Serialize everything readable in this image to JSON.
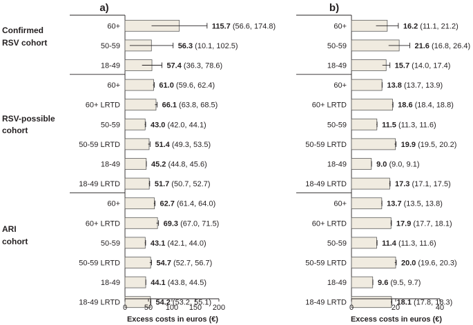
{
  "chart_data": [
    {
      "type": "bar",
      "orientation": "horizontal",
      "panel_label": "a)",
      "xlabel": "Excess costs in euros (€)",
      "xlim": [
        0,
        200
      ],
      "xticks": [
        "0",
        "50",
        "100",
        "150",
        "200"
      ],
      "groups": [
        {
          "name": "Confirmed\nRSV cohort",
          "rows": [
            {
              "category": "60+",
              "value": 115.7,
              "ci_low": 56.6,
              "ci_high": 174.8,
              "value_text": "115.7",
              "ci_text": "(56.6, 174.8)"
            },
            {
              "category": "50-59",
              "value": 56.3,
              "ci_low": 10.1,
              "ci_high": 102.5,
              "value_text": "56.3",
              "ci_text": "(10.1, 102.5)"
            },
            {
              "category": "18-49",
              "value": 57.4,
              "ci_low": 36.3,
              "ci_high": 78.6,
              "value_text": "57.4",
              "ci_text": "(36.3, 78.6)"
            }
          ]
        },
        {
          "name": "RSV-possible\ncohort",
          "rows": [
            {
              "category": "60+",
              "value": 61.0,
              "ci_low": 59.6,
              "ci_high": 62.4,
              "value_text": "61.0",
              "ci_text": "(59.6, 62.4)"
            },
            {
              "category": "60+ LRTD",
              "value": 66.1,
              "ci_low": 63.8,
              "ci_high": 68.5,
              "value_text": "66.1",
              "ci_text": "(63.8, 68.5)"
            },
            {
              "category": "50-59",
              "value": 43.0,
              "ci_low": 42.0,
              "ci_high": 44.1,
              "value_text": "43.0",
              "ci_text": "(42.0, 44.1)"
            },
            {
              "category": "50-59 LRTD",
              "value": 51.4,
              "ci_low": 49.3,
              "ci_high": 53.5,
              "value_text": "51.4",
              "ci_text": "(49.3, 53.5)"
            },
            {
              "category": "18-49",
              "value": 45.2,
              "ci_low": 44.8,
              "ci_high": 45.6,
              "value_text": "45.2",
              "ci_text": "(44.8, 45.6)"
            },
            {
              "category": "18-49 LRTD",
              "value": 51.7,
              "ci_low": 50.7,
              "ci_high": 52.7,
              "value_text": "51.7",
              "ci_text": "(50.7, 52.7)"
            }
          ]
        },
        {
          "name": "ARI\ncohort",
          "rows": [
            {
              "category": "60+",
              "value": 62.7,
              "ci_low": 61.4,
              "ci_high": 64.0,
              "value_text": "62.7",
              "ci_text": "(61.4, 64.0)"
            },
            {
              "category": "60+ LRTD",
              "value": 69.3,
              "ci_low": 67.0,
              "ci_high": 71.5,
              "value_text": "69.3",
              "ci_text": "(67.0, 71.5)"
            },
            {
              "category": "50-59",
              "value": 43.1,
              "ci_low": 42.1,
              "ci_high": 44.0,
              "value_text": "43.1",
              "ci_text": "(42.1, 44.0)"
            },
            {
              "category": "50-59 LRTD",
              "value": 54.7,
              "ci_low": 52.7,
              "ci_high": 56.7,
              "value_text": "54.7",
              "ci_text": "(52.7, 56.7)"
            },
            {
              "category": "18-49",
              "value": 44.1,
              "ci_low": 43.8,
              "ci_high": 44.5,
              "value_text": "44.1",
              "ci_text": "(43.8, 44.5)"
            },
            {
              "category": "18-49 LRTD",
              "value": 54.2,
              "ci_low": 53.2,
              "ci_high": 55.1,
              "value_text": "54.2",
              "ci_text": "(53.2, 55.1)"
            }
          ]
        }
      ]
    },
    {
      "type": "bar",
      "orientation": "horizontal",
      "panel_label": "b)",
      "xlabel": "Excess costs in euros (€)",
      "xlim": [
        0,
        40
      ],
      "xticks": [
        "0",
        "20",
        "40"
      ],
      "groups": [
        {
          "name": "Confirmed\nRSV cohort",
          "rows": [
            {
              "category": "60+",
              "value": 16.2,
              "ci_low": 11.1,
              "ci_high": 21.2,
              "value_text": "16.2",
              "ci_text": "(11.1, 21.2)"
            },
            {
              "category": "50-59",
              "value": 21.6,
              "ci_low": 16.8,
              "ci_high": 26.4,
              "value_text": "21.6",
              "ci_text": "(16.8, 26.4)"
            },
            {
              "category": "18-49",
              "value": 15.7,
              "ci_low": 14.0,
              "ci_high": 17.4,
              "value_text": "15.7",
              "ci_text": "(14.0, 17.4)"
            }
          ]
        },
        {
          "name": "RSV-possible\ncohort",
          "rows": [
            {
              "category": "60+",
              "value": 13.8,
              "ci_low": 13.7,
              "ci_high": 13.9,
              "value_text": "13.8",
              "ci_text": "(13.7, 13.9)"
            },
            {
              "category": "60+ LRTD",
              "value": 18.6,
              "ci_low": 18.4,
              "ci_high": 18.8,
              "value_text": "18.6",
              "ci_text": "(18.4, 18.8)"
            },
            {
              "category": "50-59",
              "value": 11.5,
              "ci_low": 11.3,
              "ci_high": 11.6,
              "value_text": "11.5",
              "ci_text": "(11.3, 11.6)"
            },
            {
              "category": "50-59 LRTD",
              "value": 19.9,
              "ci_low": 19.5,
              "ci_high": 20.2,
              "value_text": "19.9",
              "ci_text": "(19.5, 20.2)"
            },
            {
              "category": "18-49",
              "value": 9.0,
              "ci_low": 9.0,
              "ci_high": 9.1,
              "value_text": "9.0",
              "ci_text": "(9.0, 9.1)"
            },
            {
              "category": "18-49 LRTD",
              "value": 17.3,
              "ci_low": 17.1,
              "ci_high": 17.5,
              "value_text": "17.3",
              "ci_text": "(17.1, 17.5)"
            }
          ]
        },
        {
          "name": "ARI\ncohort",
          "rows": [
            {
              "category": "60+",
              "value": 13.7,
              "ci_low": 13.5,
              "ci_high": 13.8,
              "value_text": "13.7",
              "ci_text": "(13.5, 13.8)"
            },
            {
              "category": "60+ LRTD",
              "value": 17.9,
              "ci_low": 17.7,
              "ci_high": 18.1,
              "value_text": "17.9",
              "ci_text": "(17.7, 18.1)"
            },
            {
              "category": "50-59",
              "value": 11.4,
              "ci_low": 11.3,
              "ci_high": 11.6,
              "value_text": "11.4",
              "ci_text": "(11.3, 11.6)"
            },
            {
              "category": "50-59 LRTD",
              "value": 20.0,
              "ci_low": 19.6,
              "ci_high": 20.3,
              "value_text": "20.0",
              "ci_text": "(19.6, 20.3)"
            },
            {
              "category": "18-49",
              "value": 9.6,
              "ci_low": 9.5,
              "ci_high": 9.7,
              "value_text": "9.6",
              "ci_text": "(9.5, 9.7)"
            },
            {
              "category": "18-49 LRTD",
              "value": 18.1,
              "ci_low": 17.8,
              "ci_high": 18.3,
              "value_text": "18.1",
              "ci_text": "(17.8, 18.3)"
            }
          ]
        }
      ]
    }
  ],
  "colors": {
    "bar_fill": "#f0ebe0",
    "bar_stroke": "#5a5a5a",
    "axis": "#231f20",
    "text": "#231f20"
  }
}
